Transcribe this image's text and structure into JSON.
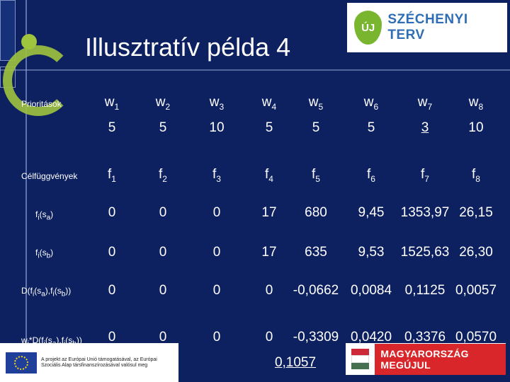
{
  "slide": {
    "title": "Illusztratív példa 4"
  },
  "logos": {
    "top": {
      "badge": "ÚJ",
      "text": "SZÉCHENYI TERV"
    },
    "bottom_left": {
      "text": "A projekt az Európai Unió támogatásával, az Európai Szociális Alap társfinanszírozásával valósul meg"
    },
    "bottom_right": {
      "text": "MAGYARORSZÁG MEGÚJUL"
    }
  },
  "colors": {
    "background": "#0d2060",
    "accent_green": "#9fc43e",
    "text": "#ffffff"
  },
  "table": {
    "row_labels": {
      "priorities": "Prioritások",
      "objectives": "Célfüggvények",
      "fi_sa": "f_i(s_a)",
      "fi_sb": "f_i(s_b)",
      "d": "D(f_i(s_a),f_i(s_b))",
      "wd": "w_i*D(f_i(s_a),f_i(s_b))"
    },
    "weights_header": [
      "w1",
      "w2",
      "w3",
      "w4",
      "w5",
      "w6",
      "w7",
      "w8"
    ],
    "weights": [
      "5",
      "5",
      "10",
      "5",
      "5",
      "5",
      "3",
      "10"
    ],
    "objectives_header": [
      "f1",
      "f2",
      "f3",
      "f4",
      "f5",
      "f6",
      "f7",
      "f8"
    ],
    "fi_sa": [
      "0",
      "0",
      "0",
      "17",
      "680",
      "9,45",
      "1353,97",
      "26,15"
    ],
    "fi_sb": [
      "0",
      "0",
      "0",
      "17",
      "635",
      "9,53",
      "1525,63",
      "26,30"
    ],
    "d": [
      "0",
      "0",
      "0",
      "0",
      "-0,0662",
      "0,0084",
      "0,1125",
      "0,0057"
    ],
    "wd": [
      "0",
      "0",
      "0",
      "0",
      "-0,3309",
      "0,0420",
      "0,3376",
      "0,0570"
    ],
    "total": "0,1057"
  }
}
